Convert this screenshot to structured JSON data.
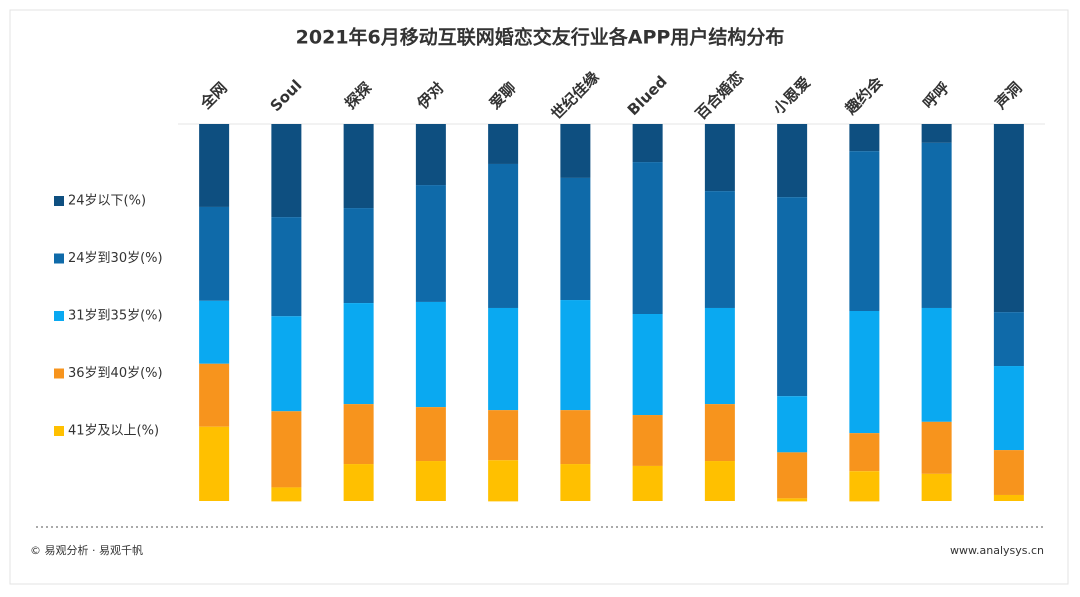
{
  "chart_data": {
    "type": "stacked_bar",
    "title": "2021年6月移动互联网婚恋交友行业各APP用户结构分布",
    "categories": [
      "全网",
      "Soul",
      "探探",
      "伊对",
      "爱聊",
      "世纪佳缘",
      "Blued",
      "百合婚恋",
      "小恩爱",
      "趣约会",
      "呼呼",
      "声洞"
    ],
    "series": [
      {
        "name": "24岁以下(%)",
        "color": "#0e4f80",
        "values": [
          22.0,
          24.7,
          22.3,
          16.2,
          10.6,
          14.3,
          10.1,
          17.8,
          19.4,
          7.2,
          5.0,
          49.9
        ]
      },
      {
        "name": "24岁到30岁(%)",
        "color": "#0f6aa9",
        "values": [
          24.9,
          26.3,
          25.2,
          31.0,
          38.2,
          32.4,
          40.3,
          31.0,
          52.8,
          42.4,
          43.8,
          14.3
        ]
      },
      {
        "name": "31岁到35岁(%)",
        "color": "#0aa9f1",
        "values": [
          16.7,
          25.2,
          26.8,
          27.9,
          27.1,
          29.2,
          26.8,
          25.5,
          14.9,
          32.4,
          30.2,
          22.3
        ]
      },
      {
        "name": "36岁到40岁(%)",
        "color": "#f7941d",
        "values": [
          16.7,
          20.2,
          15.9,
          14.3,
          13.3,
          14.3,
          13.5,
          15.1,
          12.2,
          10.1,
          13.8,
          11.9
        ]
      },
      {
        "name": "41岁及以上(%)",
        "color": "#ffc000",
        "values": [
          19.7,
          3.7,
          9.8,
          10.6,
          10.9,
          9.8,
          9.3,
          10.6,
          0.8,
          8.0,
          7.2,
          1.6
        ]
      }
    ],
    "ylim": [
      0,
      100
    ],
    "legend": "left"
  },
  "footer": {
    "left": "© 易观分析 · 易观千帆",
    "right": "www.analysys.cn"
  }
}
